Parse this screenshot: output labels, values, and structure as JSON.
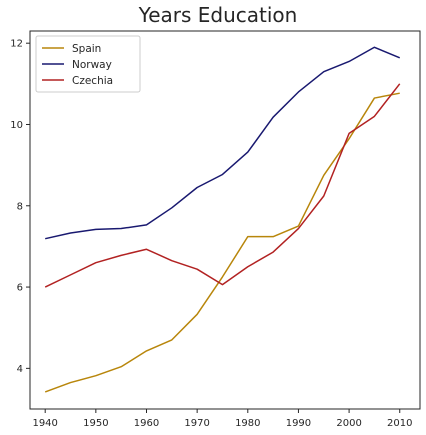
{
  "chart_data": {
    "type": "line",
    "title": "Years Education",
    "xlabel": "",
    "ylabel": "",
    "x": [
      1940,
      1945,
      1950,
      1955,
      1960,
      1965,
      1970,
      1975,
      1980,
      1985,
      1990,
      1995,
      2000,
      2005,
      2010
    ],
    "xticks": [
      1940,
      1950,
      1960,
      1970,
      1980,
      1990,
      2000,
      2010
    ],
    "yticks": [
      4,
      6,
      8,
      10,
      12
    ],
    "xlim": [
      1937,
      2014
    ],
    "ylim": [
      3.0,
      12.3
    ],
    "grid": false,
    "legend_position": "top-left",
    "series": [
      {
        "name": "Spain",
        "color": "#b8860b",
        "values": [
          3.42,
          3.65,
          3.82,
          4.04,
          4.43,
          4.7,
          5.33,
          6.25,
          7.24,
          7.24,
          7.5,
          8.75,
          9.65,
          10.65,
          10.77
        ]
      },
      {
        "name": "Norway",
        "color": "#191970",
        "values": [
          7.19,
          7.33,
          7.42,
          7.44,
          7.53,
          7.95,
          8.45,
          8.77,
          9.32,
          10.18,
          10.8,
          11.3,
          11.55,
          11.9,
          11.64
        ]
      },
      {
        "name": "Czechia",
        "color": "#b22222",
        "values": [
          6.0,
          6.3,
          6.6,
          6.78,
          6.93,
          6.65,
          6.44,
          6.06,
          6.5,
          6.86,
          7.44,
          8.24,
          9.78,
          10.2,
          11.0
        ]
      }
    ]
  }
}
